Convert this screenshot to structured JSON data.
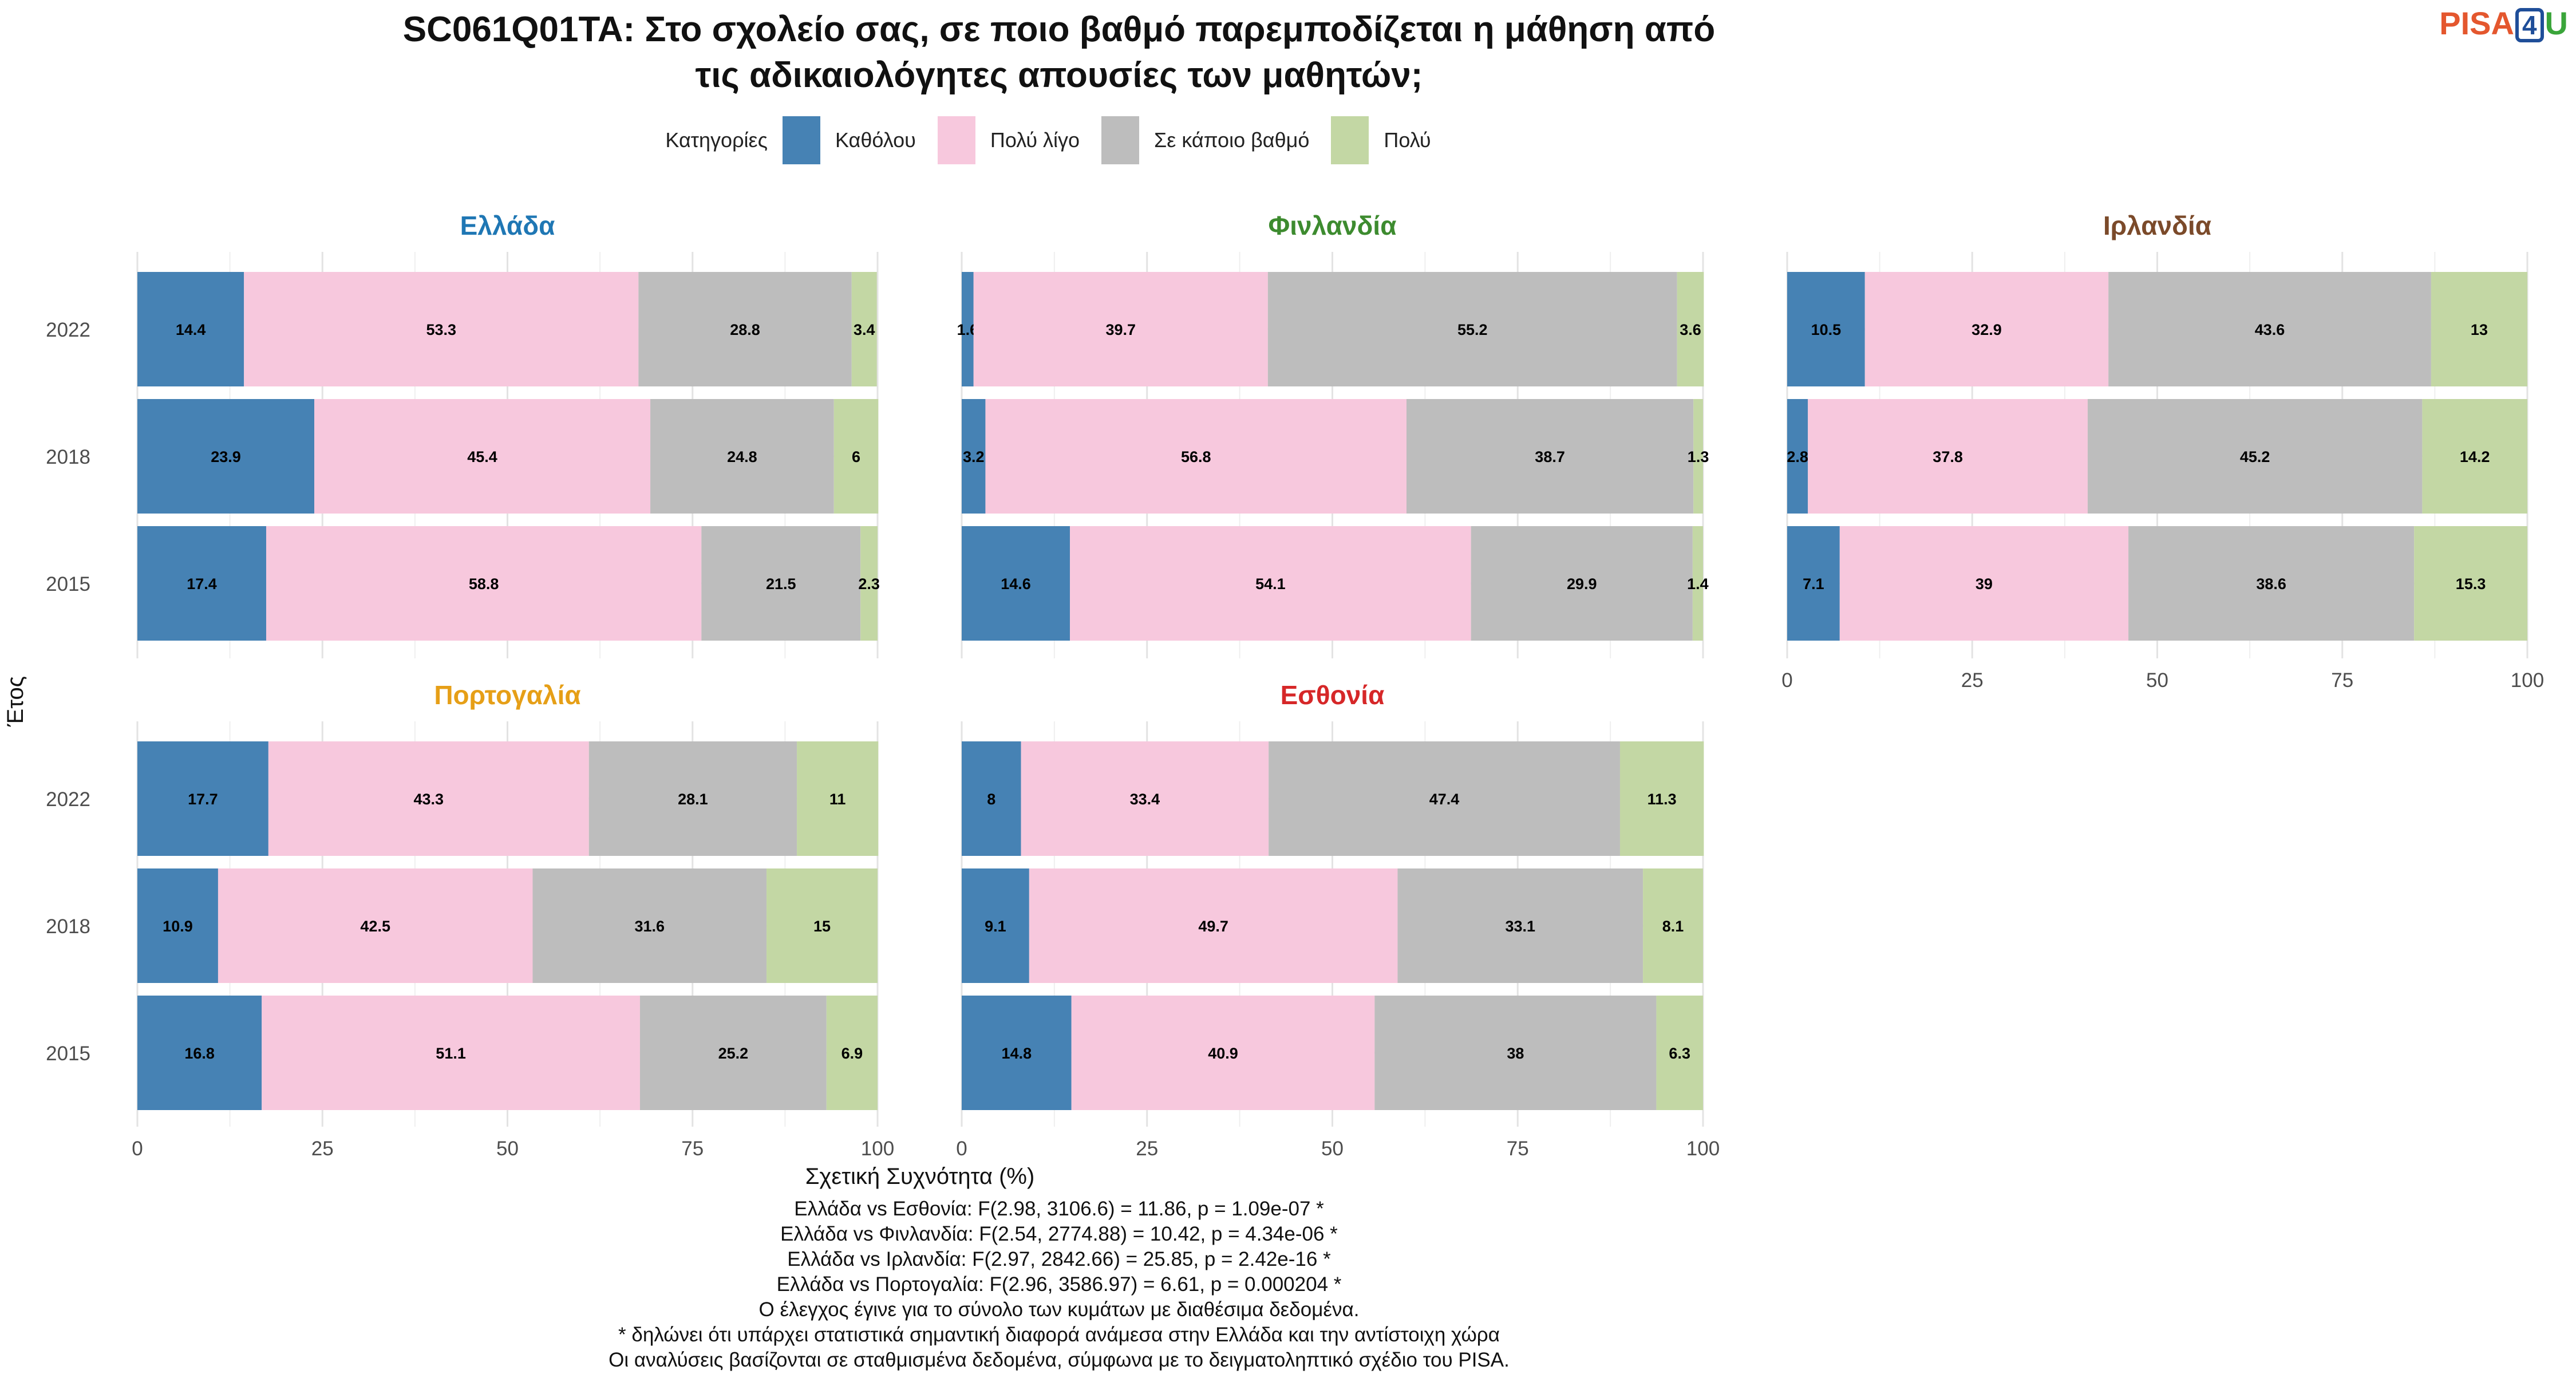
{
  "title_lines": [
    "SC061Q01TA: Στο σχολείο σας, σε ποιο βαθμό παρεμποδίζεται η μάθηση από",
    "τις αδικαιολόγητες απουσίες των μαθητών;"
  ],
  "logo": {
    "prefix": "PISA",
    "number": "4",
    "suffix": "U"
  },
  "legend": {
    "title": "Κατηγορίες",
    "items": [
      {
        "label": "Καθόλου",
        "color": "#4682b4"
      },
      {
        "label": "Πολύ λίγο",
        "color": "#f7c8dd"
      },
      {
        "label": "Σε κάποιο βαθμό",
        "color": "#bdbdbd"
      },
      {
        "label": "Πολύ",
        "color": "#c3d7a4"
      }
    ]
  },
  "chart_data": {
    "type": "bar",
    "orientation": "horizontal-stacked",
    "ylabel": "Έτος",
    "xlabel": "Σχετική Συχνότητα (%)",
    "xlim": [
      0,
      100
    ],
    "xticks": [
      0,
      25,
      50,
      75,
      100
    ],
    "years": [
      "2022",
      "2018",
      "2015"
    ],
    "categories": [
      "Καθόλου",
      "Πολύ λίγο",
      "Σε κάποιο βαθμό",
      "Πολύ"
    ],
    "colors": [
      "#4682b4",
      "#f7c8dd",
      "#bdbdbd",
      "#c3d7a4"
    ],
    "grid": true,
    "panels": [
      {
        "name": "Ελλάδα",
        "color": "#1f77b4",
        "values": {
          "2022": [
            14.4,
            53.3,
            28.8,
            3.4
          ],
          "2018": [
            23.9,
            45.4,
            24.8,
            6
          ],
          "2015": [
            17.4,
            58.8,
            21.5,
            2.3
          ]
        }
      },
      {
        "name": "Φινλανδία",
        "color": "#3d8b2f",
        "values": {
          "2022": [
            1.6,
            39.7,
            55.2,
            3.6
          ],
          "2018": [
            3.2,
            56.8,
            38.7,
            1.3
          ],
          "2015": [
            14.6,
            54.1,
            29.9,
            1.4
          ]
        }
      },
      {
        "name": "Ιρλανδία",
        "color": "#7b4a2a",
        "values": {
          "2022": [
            10.5,
            32.9,
            43.6,
            13
          ],
          "2018": [
            2.8,
            37.8,
            45.2,
            14.2
          ],
          "2015": [
            7.1,
            39,
            38.6,
            15.3
          ]
        }
      },
      {
        "name": "Πορτογαλία",
        "color": "#e69f17",
        "values": {
          "2022": [
            17.7,
            43.3,
            28.1,
            11
          ],
          "2018": [
            10.9,
            42.5,
            31.6,
            15
          ],
          "2015": [
            16.8,
            51.1,
            25.2,
            6.9
          ]
        }
      },
      {
        "name": "Εσθονία",
        "color": "#d62728",
        "values": {
          "2022": [
            8,
            33.4,
            47.4,
            11.3
          ],
          "2018": [
            9.1,
            49.7,
            33.1,
            8.1
          ],
          "2015": [
            14.8,
            40.9,
            38,
            6.3
          ]
        }
      }
    ]
  },
  "footnotes": [
    "Ελλάδα vs Εσθονία: F(2.98, 3106.6) = 11.86, p = 1.09e-07 *",
    "Ελλάδα vs Φινλανδία: F(2.54, 2774.88) = 10.42, p = 4.34e-06 *",
    "Ελλάδα vs Ιρλανδία: F(2.97, 2842.66) = 25.85, p = 2.42e-16 *",
    "Ελλάδα vs Πορτογαλία: F(2.96, 3586.97) = 6.61, p = 0.000204 *",
    "Ο έλεγχος έγινε για το σύνολο των κυμάτων με διαθέσιμα δεδομένα.",
    "* δηλώνει ότι υπάρχει στατιστικά σημαντική διαφορά ανάμεσα στην Ελλάδα και την αντίστοιχη χώρα",
    "Οι αναλύσεις βασίζονται σε σταθμισμένα δεδομένα, σύμφωνα με το δειγματοληπτικό σχέδιο του PISA."
  ]
}
